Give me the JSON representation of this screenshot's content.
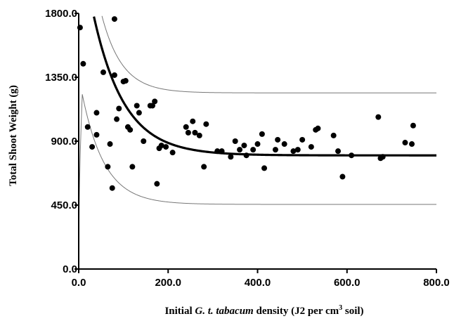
{
  "chart_data": {
    "type": "scatter",
    "title": "",
    "xlabel_parts": {
      "pre": "Initial ",
      "italic": "G. t. tabacum",
      "mid": " density (J2 per cm",
      "sup": "3",
      "post": " soil)"
    },
    "ylabel": "Total Shoot Weight (g)",
    "xlim": [
      0,
      800
    ],
    "ylim": [
      0,
      1800
    ],
    "x_ticks": [
      "0.0",
      "200.0",
      "400.0",
      "600.0",
      "800.0"
    ],
    "y_ticks": [
      "0.0",
      "450.0",
      "900.0",
      "1350.0",
      "1800.0"
    ],
    "grid": false,
    "legend": "none",
    "points": [
      [
        3,
        1700
      ],
      [
        10,
        1445
      ],
      [
        20,
        1000
      ],
      [
        30,
        860
      ],
      [
        40,
        1100
      ],
      [
        40,
        945
      ],
      [
        55,
        1385
      ],
      [
        65,
        720
      ],
      [
        70,
        880
      ],
      [
        75,
        570
      ],
      [
        80,
        1760
      ],
      [
        80,
        1365
      ],
      [
        85,
        1055
      ],
      [
        90,
        1130
      ],
      [
        100,
        1320
      ],
      [
        105,
        1325
      ],
      [
        110,
        1000
      ],
      [
        115,
        980
      ],
      [
        120,
        720
      ],
      [
        130,
        1150
      ],
      [
        135,
        1100
      ],
      [
        145,
        900
      ],
      [
        160,
        1150
      ],
      [
        165,
        1150
      ],
      [
        170,
        1180
      ],
      [
        175,
        600
      ],
      [
        180,
        850
      ],
      [
        185,
        870
      ],
      [
        195,
        860
      ],
      [
        210,
        820
      ],
      [
        240,
        1000
      ],
      [
        245,
        960
      ],
      [
        255,
        1040
      ],
      [
        260,
        960
      ],
      [
        270,
        940
      ],
      [
        280,
        720
      ],
      [
        285,
        1020
      ],
      [
        310,
        830
      ],
      [
        320,
        830
      ],
      [
        340,
        790
      ],
      [
        350,
        900
      ],
      [
        360,
        840
      ],
      [
        370,
        870
      ],
      [
        375,
        800
      ],
      [
        390,
        840
      ],
      [
        400,
        880
      ],
      [
        410,
        950
      ],
      [
        415,
        710
      ],
      [
        440,
        840
      ],
      [
        445,
        910
      ],
      [
        460,
        880
      ],
      [
        480,
        830
      ],
      [
        490,
        840
      ],
      [
        500,
        910
      ],
      [
        520,
        860
      ],
      [
        530,
        980
      ],
      [
        535,
        990
      ],
      [
        570,
        940
      ],
      [
        580,
        830
      ],
      [
        590,
        650
      ],
      [
        610,
        800
      ],
      [
        670,
        1070
      ],
      [
        675,
        780
      ],
      [
        680,
        790
      ],
      [
        730,
        890
      ],
      [
        745,
        880
      ],
      [
        748,
        1010
      ]
    ],
    "fit_curve": {
      "name": "fit",
      "asymptote": 800,
      "amplitude": 1600,
      "decay": 0.0145
    },
    "upper_band": {
      "name": "upper",
      "asymptote": 1240,
      "amplitude": 1700,
      "decay": 0.022
    },
    "lower_band": {
      "name": "lower",
      "asymptote": 455,
      "peak": 1230,
      "peak_x": 8
    },
    "colors": {
      "points": "#000000",
      "fit": "#000000",
      "bands": "#777777",
      "axis": "#000000"
    }
  }
}
